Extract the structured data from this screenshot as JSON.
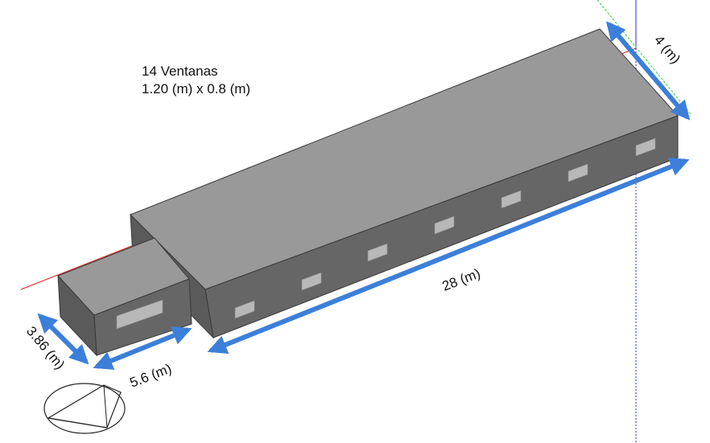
{
  "annotation": {
    "line1": "14 Ventanas",
    "line2": "1.20 (m) x 0.8 (m)"
  },
  "dimensions": {
    "width_main": "4 (m)",
    "length_main": "28 (m)",
    "length_annex": "5.6 (m)",
    "width_annex": "3.86 (m)"
  },
  "colors": {
    "roof": "#999999",
    "front_wall": "#666666",
    "side_wall": "#5a5a5a",
    "window": "#b8b8b8",
    "arrow": "#3c7fd9",
    "axis_red": "#e02020",
    "axis_blue": "#2a2ae0",
    "axis_green": "#33cc33"
  },
  "icons": {
    "compass": "north-arrow-compass-icon"
  }
}
